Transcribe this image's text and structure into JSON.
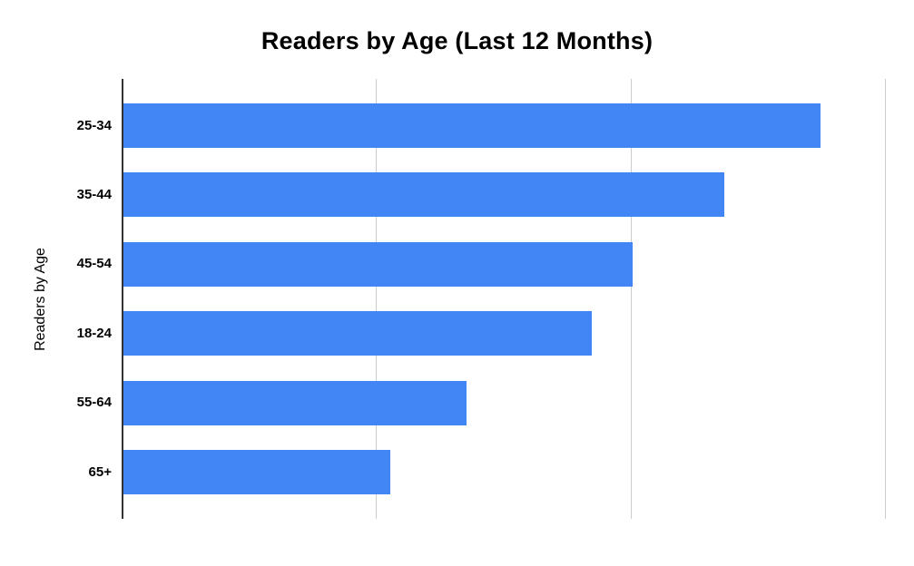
{
  "page": {
    "background": "#ffffff"
  },
  "chart_data": {
    "type": "bar",
    "orientation": "horizontal",
    "title": "Readers by Age (Last 12 Months)",
    "ylabel": "Readers by Age",
    "xlabel": "",
    "categories": [
      "25-34",
      "35-44",
      "45-54",
      "18-24",
      "55-64",
      "65+"
    ],
    "values": [
      2.74,
      2.36,
      2.0,
      1.84,
      1.35,
      1.05
    ],
    "xlim": [
      0,
      3
    ],
    "x_gridlines": [
      1,
      2,
      3
    ],
    "x_tick_labels": [],
    "legend_position": "none",
    "grid": "vertical-gridlines-only",
    "bar_color": "#4285F4",
    "gridline_color": "#cccccc",
    "axis_line_color": "#333333",
    "title_color": "#000000",
    "label_color": "#000000",
    "value_scale_note": "x-axis shows no numeric tick labels; values are in gridline intervals (45-54 bar ends exactly at the 2nd gridline)"
  }
}
